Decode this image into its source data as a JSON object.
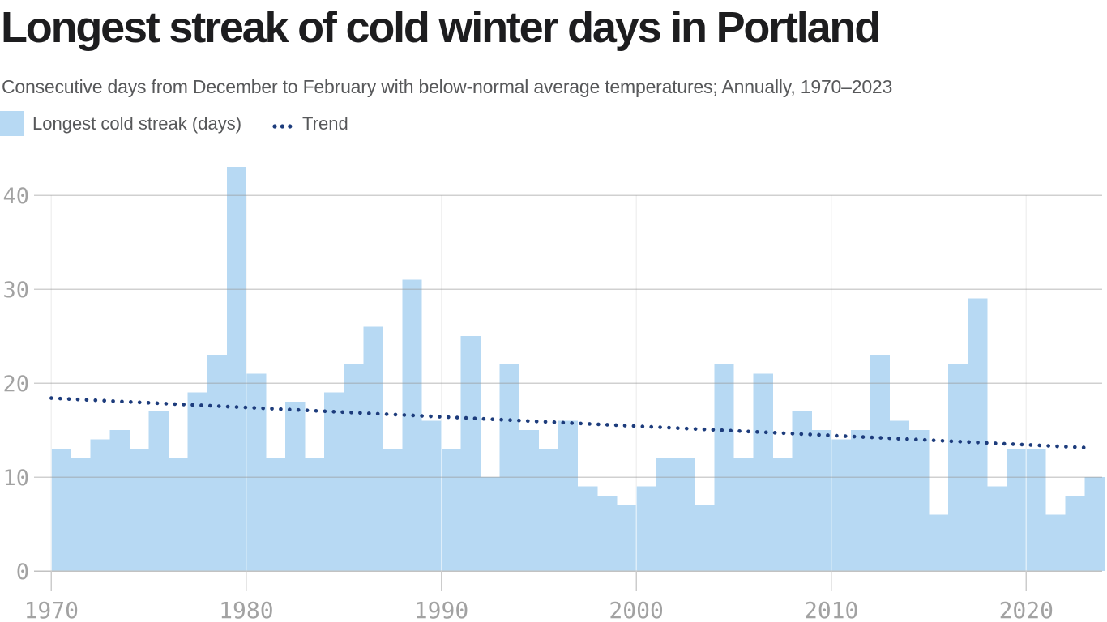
{
  "header": {
    "title": "Longest streak of cold winter days in Portland",
    "subtitle": "Consecutive days from December to February with below-normal average temperatures; Annually, 1970–2023"
  },
  "legend": {
    "bar_label": "Longest cold streak (days)",
    "trend_label": "Trend"
  },
  "colors": {
    "bar": "#b7d9f3",
    "trend": "#1d3c7c",
    "title": "#1d1d1f",
    "subtitle": "#57585a",
    "tick_label": "#a2a2a2",
    "gridline": "#c9c9c9",
    "baseline": "#c2c2c2"
  },
  "chart_data": {
    "type": "bar",
    "title": "Longest streak of cold winter days in Portland",
    "subtitle": "Consecutive days from December to February with below-normal average temperatures; Annually, 1970–2023",
    "legend_position": "top-left",
    "grid": "horizontal gridlines plus vertical decade gridlines",
    "x": [
      1970,
      1971,
      1972,
      1973,
      1974,
      1975,
      1976,
      1977,
      1978,
      1979,
      1980,
      1981,
      1982,
      1983,
      1984,
      1985,
      1986,
      1987,
      1988,
      1989,
      1990,
      1991,
      1992,
      1993,
      1994,
      1995,
      1996,
      1997,
      1998,
      1999,
      2000,
      2001,
      2002,
      2003,
      2004,
      2005,
      2006,
      2007,
      2008,
      2009,
      2010,
      2011,
      2012,
      2013,
      2014,
      2015,
      2016,
      2017,
      2018,
      2019,
      2020,
      2021,
      2022,
      2023
    ],
    "series": [
      {
        "name": "Longest cold streak (days)",
        "values": [
          13,
          12,
          14,
          15,
          13,
          17,
          12,
          19,
          23,
          43,
          21,
          12,
          18,
          12,
          19,
          22,
          26,
          13,
          31,
          16,
          13,
          25,
          10,
          22,
          15,
          13,
          16,
          9,
          8,
          7,
          9,
          12,
          12,
          7,
          22,
          12,
          21,
          12,
          17,
          15,
          14,
          15,
          23,
          16,
          15,
          6,
          22,
          29,
          9,
          13,
          13,
          6,
          8,
          10
        ]
      }
    ],
    "trend": {
      "name": "Trend",
      "style": "dotted",
      "start": {
        "x": 1970,
        "value": 18.4
      },
      "end": {
        "x": 2023.3,
        "value": 13.1
      }
    },
    "xticks": [
      1970,
      1980,
      1990,
      2000,
      2010,
      2020
    ],
    "yticks": [
      0,
      10,
      20,
      30,
      40
    ],
    "ylim": [
      0,
      44
    ],
    "xlabel": "",
    "ylabel": ""
  }
}
